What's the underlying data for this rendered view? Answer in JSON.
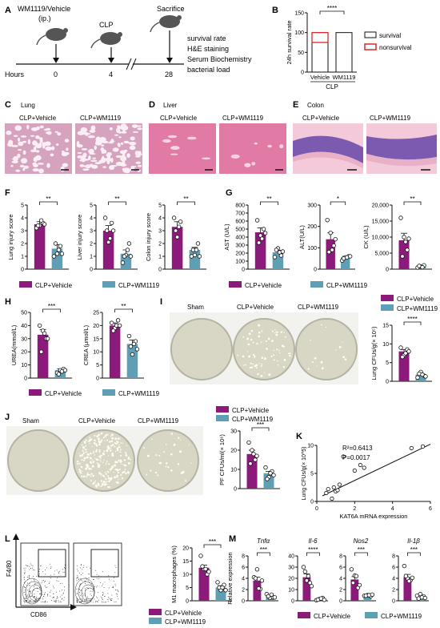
{
  "colors": {
    "vehicle": "#8b1a7a",
    "wm1119": "#5f9fb5",
    "he_lung": "#d6a3bf",
    "he_liver": "#e27aa6",
    "he_colon_bg": "#f4c9d9",
    "colon_mucosa": "#7b5ab0",
    "nonsurvival": "#d62b2b",
    "plate": "#d8d6c4"
  },
  "panel_labels": {
    "A": "A",
    "B": "B",
    "C": "C",
    "D": "D",
    "E": "E",
    "F": "F",
    "G": "G",
    "H": "H",
    "I": "I",
    "J": "J",
    "K": "K",
    "L": "L",
    "M": "M"
  },
  "panelA": {
    "treatment": "WM1119/Vehicle",
    "route": "(ip.)",
    "event2": "CLP",
    "event3": "Sacrifice",
    "hours_label": "Hours",
    "t0": "0",
    "t1": "4",
    "t2": "28",
    "readouts": [
      "survival rate",
      "H&E staining",
      "Serum Biochemistry",
      "bacterial load"
    ]
  },
  "panelC": {
    "title": "Lung",
    "g1": "CLP+Vehicle",
    "g2": "CLP+WM1119"
  },
  "panelD": {
    "title": "Liver",
    "g1": "CLP+Vehicle",
    "g2": "CLP+WM1119"
  },
  "panelE": {
    "title": "Colon",
    "g1": "CLP+Vehicle",
    "g2": "CLP+WM1119"
  },
  "legend": {
    "vehicle": "CLP+Vehicle",
    "wm": "CLP+WM1119"
  },
  "sig": {
    "s1": "*",
    "s2": "**",
    "s3": "***",
    "s4": "****"
  },
  "plateLabels": {
    "sham": "Sham",
    "veh": "CLP+Vehicle",
    "wm": "CLP+WM1119"
  },
  "panelK": {
    "r2": "R²=0.6413",
    "p": "P=0.0017"
  },
  "panelL": {
    "ylab": "F4/80",
    "xlab": "CD86"
  },
  "chart_data": [
    {
      "id": "B",
      "type": "bar",
      "ylabel": "24h survival rate",
      "ylim": [
        0,
        150
      ],
      "ticks": [
        0,
        50,
        100,
        150
      ],
      "categories": [
        "Vehicle",
        "WM1119"
      ],
      "group_label": "CLP",
      "series": [
        {
          "name": "survival",
          "values": [
            75,
            100
          ]
        },
        {
          "name": "nonsurvival",
          "values": [
            25,
            0
          ]
        }
      ],
      "significance": "****",
      "legend": "right"
    },
    {
      "id": "F1",
      "type": "bar",
      "ylabel": "Lung injury score",
      "ylim": [
        0,
        5
      ],
      "ticks": [
        0,
        1,
        2,
        3,
        4,
        5
      ],
      "categories": [
        "CLP+Vehicle",
        "CLP+WM1119"
      ],
      "values": [
        3.5,
        1.6
      ],
      "errors": [
        0.2,
        0.3
      ],
      "points": [
        [
          3.2,
          3.4,
          3.6,
          3.4,
          3.8,
          3.5
        ],
        [
          1.0,
          1.2,
          1.8,
          2.0,
          1.5,
          1.2
        ]
      ],
      "significance": "**"
    },
    {
      "id": "F2",
      "type": "bar",
      "ylabel": "Liver injury score",
      "ylim": [
        0,
        5
      ],
      "ticks": [
        0,
        1,
        2,
        3,
        4,
        5
      ],
      "categories": [
        "CLP+Vehicle",
        "CLP+WM1119"
      ],
      "values": [
        3.0,
        1.2
      ],
      "errors": [
        0.4,
        0.3
      ],
      "points": [
        [
          4.0,
          2.1,
          3.6,
          3.0,
          2.4,
          3.0
        ],
        [
          0.5,
          1.1,
          2.0,
          1.0,
          1.5,
          1.0
        ]
      ],
      "significance": "**"
    },
    {
      "id": "F3",
      "type": "bar",
      "ylabel": "Colon injury score",
      "ylim": [
        0,
        5
      ],
      "ticks": [
        0,
        1,
        2,
        3,
        4,
        5
      ],
      "categories": [
        "CLP+Vehicle",
        "CLP+WM1119"
      ],
      "values": [
        3.3,
        1.5
      ],
      "errors": [
        0.4,
        0.2
      ],
      "points": [
        [
          4.0,
          2.5,
          3.7,
          3.0,
          3.3
        ],
        [
          1.0,
          1.1,
          2.0,
          1.5,
          1.5,
          1.0
        ]
      ],
      "significance": "**"
    },
    {
      "id": "G1",
      "type": "bar",
      "ylabel": "AST (U/L)",
      "ylim": [
        0,
        800
      ],
      "ticks": [
        0,
        100,
        200,
        300,
        400,
        500,
        600,
        700,
        800
      ],
      "categories": [
        "CLP+Vehicle",
        "CLP+WM1119"
      ],
      "values": [
        460,
        210
      ],
      "errors": [
        55,
        25
      ],
      "points": [
        [
          610,
          420,
          500,
          330,
          380,
          450
        ],
        [
          150,
          260,
          170,
          240,
          210,
          220
        ]
      ],
      "significance": "**"
    },
    {
      "id": "G2",
      "type": "bar",
      "ylabel": "ALT(U/L)",
      "ylim": [
        0,
        300
      ],
      "ticks": [
        0,
        100,
        200,
        300
      ],
      "categories": [
        "CLP+Vehicle",
        "CLP+WM1119"
      ],
      "values": [
        140,
        55
      ],
      "errors": [
        30,
        5
      ],
      "points": [
        [
          230,
          170,
          110,
          80,
          90,
          140
        ],
        [
          40,
          55,
          60,
          50,
          55,
          60
        ]
      ],
      "significance": "*"
    },
    {
      "id": "G3",
      "type": "bar",
      "ylabel": "CK (U/L)",
      "ylim": [
        0,
        20000
      ],
      "ticks": [
        0,
        5000,
        10000,
        15000,
        20000
      ],
      "categories": [
        "CLP+Vehicle",
        "CLP+WM1119"
      ],
      "values": [
        9000,
        800
      ],
      "errors": [
        2200,
        200
      ],
      "points": [
        [
          16000,
          10000,
          6000,
          4000,
          8500,
          9500
        ],
        [
          500,
          800,
          1200,
          1000,
          600
        ]
      ],
      "significance": "**"
    },
    {
      "id": "H1",
      "type": "bar",
      "ylabel": "UREA(mmol/L)",
      "ylim": [
        0,
        50
      ],
      "ticks": [
        0,
        10,
        20,
        30,
        40,
        50
      ],
      "categories": [
        "CLP+Vehicle",
        "CLP+WM1119"
      ],
      "values": [
        33,
        6
      ],
      "errors": [
        4,
        1
      ],
      "points": [
        [
          40,
          36,
          30,
          20,
          34,
          30
        ],
        [
          4,
          6,
          7,
          3,
          5,
          6
        ]
      ],
      "significance": "***"
    },
    {
      "id": "H2",
      "type": "bar",
      "ylabel": "CREA (μmol/L)",
      "ylim": [
        0,
        25
      ],
      "ticks": [
        0,
        5,
        10,
        15,
        20,
        25
      ],
      "categories": [
        "CLP+Vehicle",
        "CLP+WM1119"
      ],
      "values": [
        20,
        13
      ],
      "errors": [
        1,
        1.5
      ],
      "points": [
        [
          21,
          19,
          22,
          18,
          20,
          20
        ],
        [
          16,
          9,
          14,
          12,
          13,
          11
        ]
      ],
      "significance": "**"
    },
    {
      "id": "I",
      "type": "bar",
      "ylabel": "Lung CFUs/g(× 10⁵)",
      "ylim": [
        0,
        15
      ],
      "ticks": [
        0,
        5,
        10,
        15
      ],
      "categories": [
        "CLP+Vehicle",
        "CLP+WM1119"
      ],
      "values": [
        8,
        1.8
      ],
      "errors": [
        0.5,
        0.3
      ],
      "points": [
        [
          9,
          7,
          8.5,
          6.5,
          7.5,
          8
        ],
        [
          1,
          2.5,
          1.5,
          2,
          1.8,
          1.3
        ]
      ],
      "significance": "****"
    },
    {
      "id": "J",
      "type": "bar",
      "ylabel": "PF CFUs/ml(× 10⁶)",
      "ylim": [
        0,
        30
      ],
      "ticks": [
        0,
        10,
        20,
        30
      ],
      "categories": [
        "CLP+Vehicle",
        "CLP+WM1119"
      ],
      "values": [
        18,
        8
      ],
      "errors": [
        2,
        1
      ],
      "points": [
        [
          24,
          20,
          15,
          13,
          18,
          17
        ],
        [
          11,
          6,
          9,
          5,
          8,
          7
        ]
      ],
      "significance": "***"
    },
    {
      "id": "K",
      "type": "scatter",
      "xlabel": "KAT6A mRNA expression",
      "ylabel": "Lung CFUs/g(× 10^5)",
      "xlim": [
        0,
        6
      ],
      "ylim": [
        0,
        10
      ],
      "xticks": [
        0,
        2,
        4,
        6
      ],
      "yticks": [
        0,
        5,
        10
      ],
      "points": [
        [
          0.5,
          1.5
        ],
        [
          0.6,
          2.2
        ],
        [
          0.8,
          0.5
        ],
        [
          0.9,
          2.5
        ],
        [
          1.0,
          1.8
        ],
        [
          1.1,
          2.0
        ],
        [
          1.2,
          3.0
        ],
        [
          1.4,
          8.0
        ],
        [
          2.0,
          5.5
        ],
        [
          2.3,
          6.5
        ],
        [
          2.5,
          6.0
        ],
        [
          5.0,
          9.5
        ],
        [
          5.6,
          9.8
        ]
      ],
      "fit": [
        [
          0.3,
          1.0
        ],
        [
          6,
          10.2
        ]
      ]
    },
    {
      "id": "L",
      "type": "bar",
      "ylabel": "M1 macrophages (%)",
      "ylim": [
        0,
        20
      ],
      "ticks": [
        0,
        5,
        10,
        15,
        20
      ],
      "categories": [
        "CLP+Vehicle",
        "CLP+WM1119"
      ],
      "values": [
        12.5,
        5
      ],
      "errors": [
        1,
        0.7
      ],
      "points": [
        [
          17,
          12,
          10,
          13,
          12,
          11
        ],
        [
          7,
          4,
          6,
          5,
          5,
          4
        ]
      ],
      "significance": "***"
    },
    {
      "id": "M1",
      "type": "bar",
      "title": "Tnfα",
      "ylabel": "Relative expression",
      "ylim": [
        0,
        8
      ],
      "ticks": [
        0,
        2,
        4,
        6,
        8
      ],
      "categories": [
        "CLP+Vehicle",
        "CLP+WM1119"
      ],
      "values": [
        3.6,
        0.8
      ],
      "errors": [
        0.6,
        0.2
      ],
      "points": [
        [
          4.2,
          5.6,
          2.1,
          4.0,
          2.2,
          3.6
        ],
        [
          1.2,
          0.5,
          0.6,
          0.8,
          1.1,
          0.6
        ]
      ],
      "significance": "***"
    },
    {
      "id": "M2",
      "type": "bar",
      "title": "Il-6",
      "ylim": [
        0,
        40
      ],
      "ticks": [
        0,
        10,
        20,
        30,
        40
      ],
      "categories": [
        "CLP+Vehicle",
        "CLP+WM1119"
      ],
      "values": [
        21,
        1.5
      ],
      "errors": [
        3,
        0.5
      ],
      "points": [
        [
          30,
          18,
          16,
          26,
          22,
          13
        ],
        [
          0.5,
          1.5,
          2.5,
          1.0,
          2.0,
          0.8
        ]
      ],
      "significance": "****"
    },
    {
      "id": "M3",
      "type": "bar",
      "title": "Nos2",
      "ylim": [
        0,
        8
      ],
      "ticks": [
        0,
        2,
        4,
        6,
        8
      ],
      "categories": [
        "CLP+Vehicle",
        "CLP+WM1119"
      ],
      "values": [
        3.8,
        0.9
      ],
      "errors": [
        0.5,
        0.1
      ],
      "points": [
        [
          5.6,
          4.5,
          2.3,
          3.2,
          4.4,
          2.8
        ],
        [
          0.9,
          1.0,
          0.8,
          0.9,
          1.0,
          1.1
        ]
      ],
      "significance": "***"
    },
    {
      "id": "M4",
      "type": "bar",
      "title": "Il-1β",
      "ylim": [
        0,
        8
      ],
      "ticks": [
        0,
        2,
        4,
        6,
        8
      ],
      "categories": [
        "CLP+Vehicle",
        "CLP+WM1119"
      ],
      "values": [
        4.2,
        0.8
      ],
      "errors": [
        0.5,
        0.2
      ],
      "points": [
        [
          6.2,
          4.0,
          3.7,
          4.4,
          3.5,
          4.1
        ],
        [
          0.9,
          1.2,
          0.8,
          0.4,
          0.6,
          0.5
        ]
      ],
      "significance": "***"
    }
  ]
}
